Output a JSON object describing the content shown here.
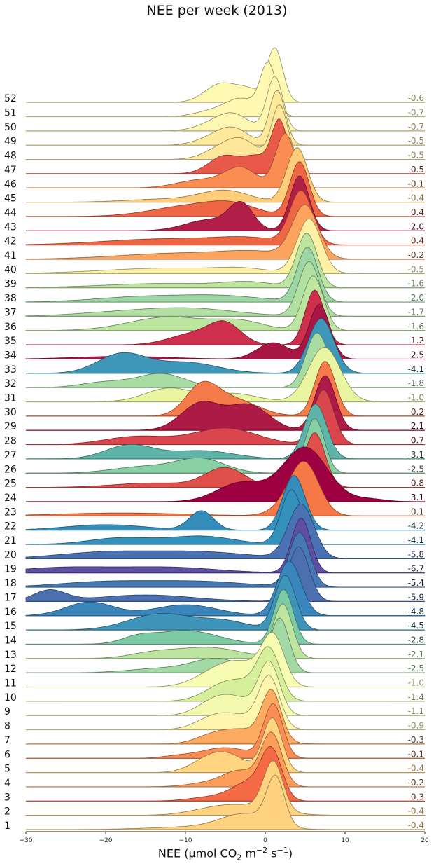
{
  "chart_data": {
    "type": "ridgeline",
    "title": "NEE per week (2013)",
    "xlabel": {
      "prefix": "NEE (μmol CO",
      "sub": "2",
      "mid": " m",
      "sup1": "−2",
      "mid2": " s",
      "sup2": "−1",
      "suffix": ")"
    },
    "xlim": [
      -30,
      20
    ],
    "xticks": [
      "−30",
      "−20",
      "−10",
      "0",
      "10",
      "20"
    ],
    "xtick_values": [
      -30,
      -20,
      -10,
      0,
      10,
      20
    ],
    "colormap": "Spectral_r",
    "rows": [
      {
        "week": "1",
        "mean": "-0.4",
        "value": -0.4,
        "color": "#fed27f",
        "peak": 1.3,
        "width": 1.1,
        "tail": [
          [
            -2.5,
            0.3,
            3
          ],
          [
            -8,
            0.06,
            6
          ]
        ]
      },
      {
        "week": "2",
        "mean": "-0.4",
        "value": -0.4,
        "color": "#fed380",
        "peak": 1.0,
        "width": 1.2,
        "tail": [
          [
            -3,
            0.2,
            4
          ],
          [
            -7,
            0.05,
            3
          ]
        ]
      },
      {
        "week": "3",
        "mean": "0.3",
        "value": 0.3,
        "color": "#f36a45",
        "peak": 0.8,
        "width": 1.3,
        "tail": [
          [
            -2,
            0.35,
            2
          ],
          [
            -6,
            0.1,
            3
          ]
        ]
      },
      {
        "week": "4",
        "mean": "-0.2",
        "value": -0.2,
        "color": "#fc9d59",
        "peak": 0.8,
        "width": 1.3,
        "tail": [
          [
            -3,
            0.25,
            2
          ],
          [
            -6,
            0.1,
            3
          ]
        ]
      },
      {
        "week": "5",
        "mean": "-0.4",
        "value": -0.4,
        "color": "#fed480",
        "peak": 0.9,
        "width": 1.2,
        "tail": [
          [
            -5,
            0.35,
            2.5
          ],
          [
            -8,
            0.1,
            2
          ]
        ]
      },
      {
        "week": "6",
        "mean": "-0.1",
        "value": -0.1,
        "color": "#fb8d54",
        "peak": 1.0,
        "width": 1.2,
        "tail": [
          [
            -5,
            0.2,
            3
          ],
          [
            -11,
            0.04,
            2
          ]
        ]
      },
      {
        "week": "7",
        "mean": "-0.3",
        "value": -0.3,
        "color": "#fcaa5f",
        "peak": 0.8,
        "width": 1.2,
        "tail": [
          [
            -3,
            0.3,
            3
          ],
          [
            -7,
            0.1,
            2
          ]
        ]
      },
      {
        "week": "8",
        "mean": "-0.9",
        "value": -0.9,
        "color": "#fef6af",
        "peak": 0.5,
        "width": 1.3,
        "tail": [
          [
            -4,
            0.3,
            3
          ],
          [
            -7,
            0.1,
            2
          ]
        ]
      },
      {
        "week": "9",
        "mean": "-1.1",
        "value": -1.1,
        "color": "#f3fab0",
        "peak": 0.5,
        "width": 1.3,
        "tail": [
          [
            -4,
            0.35,
            2.5
          ],
          [
            -7,
            0.15,
            2
          ]
        ]
      },
      {
        "week": "10",
        "mean": "-1.4",
        "value": -1.4,
        "color": "#d7ef9b",
        "peak": 0.5,
        "width": 1.4,
        "tail": [
          [
            -5,
            0.35,
            2.5
          ],
          [
            -2,
            0.2,
            2
          ]
        ]
      },
      {
        "week": "11",
        "mean": "-1.0",
        "value": -1.0,
        "color": "#f7fcb3",
        "peak": 1.0,
        "width": 1.4,
        "tail": [
          [
            -5,
            0.45,
            3
          ],
          [
            -2,
            0.2,
            2
          ]
        ]
      },
      {
        "week": "12",
        "mean": "-2.5",
        "value": -2.5,
        "color": "#a2d9a4",
        "peak": 1.8,
        "width": 1.2,
        "tail": [
          [
            -6,
            0.25,
            3
          ],
          [
            -13,
            0.08,
            4
          ]
        ]
      },
      {
        "week": "13",
        "mean": "-2.1",
        "value": -2.1,
        "color": "#bee5a0",
        "peak": 2.2,
        "width": 1.2,
        "tail": [
          [
            -7,
            0.2,
            4
          ],
          [
            -14,
            0.1,
            3
          ]
        ]
      },
      {
        "week": "14",
        "mean": "-2.8",
        "value": -2.8,
        "color": "#7dcba4",
        "peak": 2.3,
        "width": 1.2,
        "tail": [
          [
            -10,
            0.25,
            4
          ],
          [
            -16,
            0.1,
            2
          ]
        ]
      },
      {
        "week": "15",
        "mean": "-4.5",
        "value": -4.5,
        "color": "#3e95b9",
        "peak": 2.5,
        "width": 1.3,
        "tail": [
          [
            -13,
            0.3,
            4
          ],
          [
            -5,
            0.15,
            3
          ]
        ]
      },
      {
        "week": "16",
        "mean": "-4.8",
        "value": -4.8,
        "color": "#3a86bc",
        "peak": 3.0,
        "width": 1.5,
        "tail": [
          [
            -22,
            0.25,
            3
          ],
          [
            -10,
            0.2,
            4
          ]
        ]
      },
      {
        "week": "17",
        "mean": "-5.9",
        "value": -5.9,
        "color": "#4c6fb0",
        "peak": 4.2,
        "width": 1.3,
        "tail": [
          [
            -27,
            0.2,
            2
          ],
          [
            -15,
            0.12,
            6
          ]
        ]
      },
      {
        "week": "18",
        "mean": "-5.4",
        "value": -5.4,
        "color": "#4678b3",
        "peak": 4.3,
        "width": 1.3,
        "tail": [
          [
            -20,
            0.1,
            6
          ],
          [
            -8,
            0.1,
            6
          ]
        ]
      },
      {
        "week": "19",
        "mean": "-6.7",
        "value": -6.7,
        "color": "#5e4fa2",
        "peak": 4.5,
        "width": 1.2,
        "tail": [
          [
            -25,
            0.1,
            6
          ],
          [
            -12,
            0.1,
            6
          ]
        ]
      },
      {
        "week": "20",
        "mean": "-5.8",
        "value": -5.8,
        "color": "#4a72b2",
        "peak": 4.5,
        "width": 1.6,
        "tail": [
          [
            -20,
            0.12,
            6
          ],
          [
            -8,
            0.12,
            6
          ]
        ]
      },
      {
        "week": "21",
        "mean": "-4.1",
        "value": -4.1,
        "color": "#3391bb",
        "peak": 3.3,
        "width": 1.3,
        "tail": [
          [
            -18,
            0.12,
            4
          ],
          [
            -8,
            0.15,
            4
          ]
        ]
      },
      {
        "week": "22",
        "mean": "-4.2",
        "value": -4.2,
        "color": "#358dbb",
        "peak": 3.6,
        "width": 1.4,
        "tail": [
          [
            -8,
            0.35,
            1.5
          ],
          [
            -20,
            0.1,
            5
          ]
        ]
      },
      {
        "week": "23",
        "mean": "0.1",
        "value": 0.1,
        "color": "#f57846",
        "peak": 5.0,
        "width": 1.8,
        "tail": [
          [
            -18,
            0.06,
            8
          ],
          [
            3,
            0.2,
            2
          ]
        ]
      },
      {
        "week": "24",
        "mean": "3.1",
        "value": 3.1,
        "color": "#9e0142",
        "peak": 5.0,
        "width": 2.8,
        "tail": [
          [
            -3,
            0.35,
            3
          ],
          [
            13,
            0.05,
            2
          ]
        ]
      },
      {
        "week": "25",
        "mean": "0.8",
        "value": 0.8,
        "color": "#e0504b",
        "peak": 6.2,
        "width": 1.3,
        "tail": [
          [
            -5,
            0.35,
            2.5
          ],
          [
            -14,
            0.08,
            5
          ]
        ]
      },
      {
        "week": "26",
        "mean": "-2.5",
        "value": -2.5,
        "color": "#88cfa4",
        "peak": 6.2,
        "width": 1.2,
        "tail": [
          [
            -8,
            0.25,
            3
          ],
          [
            -15,
            0.12,
            4
          ]
        ]
      },
      {
        "week": "27",
        "mean": "-3.1",
        "value": -3.1,
        "color": "#5eb4a9",
        "peak": 6.3,
        "width": 1.4,
        "tail": [
          [
            -17,
            0.25,
            3
          ],
          [
            -8,
            0.15,
            4
          ]
        ]
      },
      {
        "week": "28",
        "mean": "0.7",
        "value": 0.7,
        "color": "#da464d",
        "peak": 7.3,
        "width": 1.3,
        "tail": [
          [
            -5,
            0.3,
            4
          ],
          [
            -16,
            0.15,
            4
          ]
        ]
      },
      {
        "week": "29",
        "mean": "2.1",
        "value": 2.1,
        "color": "#ad1a46",
        "peak": 7.5,
        "width": 1.3,
        "tail": [
          [
            -8,
            0.5,
            2.5
          ],
          [
            -2,
            0.45,
            2.5
          ]
        ]
      },
      {
        "week": "30",
        "mean": "0.2",
        "value": 0.2,
        "color": "#f67b4a",
        "peak": 7.5,
        "width": 1.3,
        "tail": [
          [
            -8,
            0.5,
            2
          ],
          [
            -4,
            0.3,
            3
          ]
        ]
      },
      {
        "week": "31",
        "mean": "-1.0",
        "value": -1.0,
        "color": "#e9f5a1",
        "peak": 7.4,
        "width": 2.0,
        "tail": [
          [
            -12,
            0.25,
            3
          ],
          [
            -4,
            0.15,
            3
          ]
        ]
      },
      {
        "week": "32",
        "mean": "-1.8",
        "value": -1.8,
        "color": "#a8dca2",
        "peak": 6.5,
        "width": 1.4,
        "tail": [
          [
            -13,
            0.25,
            3
          ],
          [
            -20,
            0.1,
            3
          ]
        ]
      },
      {
        "week": "33",
        "mean": "-4.1",
        "value": -4.1,
        "color": "#3e97b8",
        "peak": 7.0,
        "width": 1.6,
        "tail": [
          [
            -18,
            0.35,
            3
          ],
          [
            -10,
            0.2,
            4
          ]
        ]
      },
      {
        "week": "34",
        "mean": "2.5",
        "value": 2.5,
        "color": "#a81645",
        "peak": 6.8,
        "width": 1.3,
        "tail": [
          [
            1,
            0.3,
            2
          ],
          [
            -18,
            0.05,
            6
          ]
        ]
      },
      {
        "week": "35",
        "mean": "1.2",
        "value": 1.2,
        "color": "#cd2f4d",
        "peak": 6.2,
        "width": 1.2,
        "tail": [
          [
            -5,
            0.35,
            2
          ],
          [
            -9,
            0.2,
            3
          ]
        ]
      },
      {
        "week": "36",
        "mean": "-1.6",
        "value": -1.6,
        "color": "#bce59f",
        "peak": 6.0,
        "width": 1.3,
        "tail": [
          [
            -12,
            0.25,
            5
          ],
          [
            -3,
            0.15,
            3
          ]
        ]
      },
      {
        "week": "37",
        "mean": "-1.7",
        "value": -1.7,
        "color": "#b1e0a2",
        "peak": 5.5,
        "width": 1.3,
        "tail": [
          [
            -10,
            0.15,
            6
          ],
          [
            -20,
            0.05,
            5
          ]
        ]
      },
      {
        "week": "38",
        "mean": "-2.0",
        "value": -2.0,
        "color": "#9dd6a4",
        "peak": 5.3,
        "width": 1.3,
        "tail": [
          [
            -15,
            0.1,
            6
          ],
          [
            -5,
            0.1,
            5
          ]
        ]
      },
      {
        "week": "39",
        "mean": "-1.6",
        "value": -1.6,
        "color": "#bde5a0",
        "peak": 5.2,
        "width": 1.3,
        "tail": [
          [
            -12,
            0.08,
            8
          ],
          [
            -2,
            0.08,
            3
          ]
        ]
      },
      {
        "week": "40",
        "mean": "-0.5",
        "value": -0.5,
        "color": "#fdf1a6",
        "peak": 5.5,
        "width": 1.5,
        "tail": [
          [
            -12,
            0.1,
            8
          ],
          [
            -3,
            0.06,
            3
          ]
        ]
      },
      {
        "week": "41",
        "mean": "-0.2",
        "value": -0.2,
        "color": "#fca35d",
        "peak": 5.0,
        "width": 1.6,
        "tail": [
          [
            -10,
            0.12,
            8
          ],
          [
            -1,
            0.1,
            4
          ]
        ]
      },
      {
        "week": "42",
        "mean": "0.4",
        "value": 0.4,
        "color": "#ef6645",
        "peak": 4.5,
        "width": 1.4,
        "tail": [
          [
            -12,
            0.12,
            8
          ],
          [
            -2,
            0.1,
            4
          ]
        ]
      },
      {
        "week": "43",
        "mean": "2.0",
        "value": 2.0,
        "color": "#b11e47",
        "peak": 4.3,
        "width": 1.2,
        "tail": [
          [
            -3,
            0.45,
            1.5
          ],
          [
            -7,
            0.2,
            3
          ]
        ]
      },
      {
        "week": "44",
        "mean": "0.4",
        "value": 0.4,
        "color": "#ef6645",
        "peak": 4.3,
        "width": 1.2,
        "tail": [
          [
            -9,
            0.2,
            5
          ],
          [
            -4,
            0.15,
            3
          ]
        ]
      },
      {
        "week": "45",
        "mean": "-0.4",
        "value": -0.4,
        "color": "#fdcd7a",
        "peak": 4.0,
        "width": 1.3,
        "tail": [
          [
            -5,
            0.2,
            3
          ],
          [
            -12,
            0.06,
            5
          ]
        ]
      },
      {
        "week": "46",
        "mean": "-0.1",
        "value": -0.1,
        "color": "#fa8e52",
        "peak": 2.5,
        "width": 1.2,
        "tail": [
          [
            -3,
            0.35,
            2
          ],
          [
            -8,
            0.15,
            3
          ]
        ]
      },
      {
        "week": "47",
        "mean": "0.5",
        "value": 0.5,
        "color": "#e9594a",
        "peak": 1.8,
        "width": 1.0,
        "tail": [
          [
            -5,
            0.35,
            2
          ],
          [
            -1,
            0.3,
            1.5
          ]
        ]
      },
      {
        "week": "48",
        "mean": "-0.5",
        "value": -0.5,
        "color": "#fee79a",
        "peak": 1.8,
        "width": 1.0,
        "tail": [
          [
            -3,
            0.35,
            2
          ],
          [
            -6,
            0.15,
            2
          ]
        ]
      },
      {
        "week": "49",
        "mean": "-0.5",
        "value": -0.5,
        "color": "#fee99c",
        "peak": 1.5,
        "width": 1.0,
        "tail": [
          [
            -4,
            0.3,
            2
          ],
          [
            -7,
            0.1,
            2
          ]
        ]
      },
      {
        "week": "50",
        "mean": "-0.7",
        "value": -0.7,
        "color": "#fef7b1",
        "peak": 1.2,
        "width": 1.0,
        "tail": [
          [
            -4,
            0.3,
            2
          ],
          [
            -7,
            0.1,
            2
          ]
        ]
      },
      {
        "week": "51",
        "mean": "-0.7",
        "value": -0.7,
        "color": "#fef8b2",
        "peak": 0.4,
        "width": 1.0,
        "tail": [
          [
            -3,
            0.35,
            2
          ],
          [
            -7,
            0.1,
            2
          ]
        ]
      },
      {
        "week": "52",
        "mean": "-0.6",
        "value": -0.6,
        "color": "#fefab4",
        "peak": 1.2,
        "width": 1.0,
        "tail": [
          [
            -5.5,
            0.35,
            2
          ],
          [
            -2,
            0.2,
            1.5
          ]
        ]
      }
    ]
  }
}
